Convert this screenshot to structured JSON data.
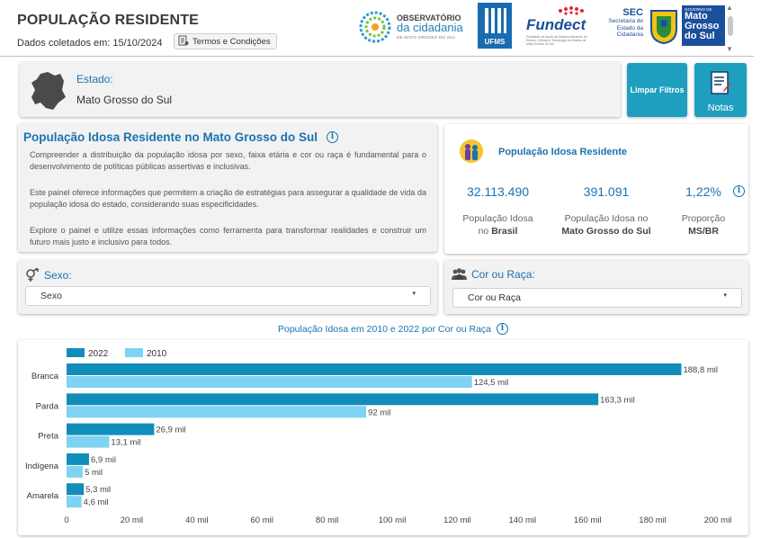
{
  "header": {
    "title": "POPULAÇÃO RESIDENTE",
    "collected": "Dados coletados em: 15/10/2024",
    "terms_button": "Termos e Condições",
    "logos": {
      "observatorio_line1": "OBSERVATÓRIO",
      "observatorio_line2": "da cidadania",
      "observatorio_line3": "DE MATO GROSSO DO SUL",
      "ufms": "UFMS",
      "fundect": "Fundect",
      "fundect_sub": "Fundação de Apoio ao Desenvolvimento do Ensino, Ciência e Tecnologia do Estado de Mato Grosso do Sul",
      "sec_big": "SEC",
      "sec_small": [
        "Secretaria de",
        "Estado da",
        "Cidadania"
      ],
      "gov_small": "GOVERNO DE",
      "gov_line1": "Mato",
      "gov_line2": "Grosso",
      "gov_line3": "do Sul"
    }
  },
  "state": {
    "label": "Estado:",
    "value": "Mato Grosso do Sul"
  },
  "buttons": {
    "limpar": "Limpar Filtros",
    "notas": "Notas"
  },
  "description": {
    "title": "População Idosa Residente no Mato Grosso do Sul",
    "p1": "Compreender a distribuição da população idosa por sexo, faixa etária e cor ou raça é fundamental para o desenvolvimento de políticas públicas assertivas e inclusivas.",
    "p2": "Este painel oferece informações que permitem a criação de estratégias para assegurar a qualidade de vida da população idosa do estado, considerando suas especificidades.",
    "p3": "Explore o painel e utilize essas informações como ferramenta para transformar realidades e construir um futuro mais justo e inclusivo para todos."
  },
  "stats": {
    "title": "População Idosa Residente",
    "items": [
      {
        "value": "32.113.490",
        "label1": "População Idosa",
        "label2_pre": "no ",
        "label2_bold": "Brasil"
      },
      {
        "value": "391.091",
        "label1": "População Idosa no",
        "label2_pre": "",
        "label2_bold": "Mato Grosso do Sul"
      },
      {
        "value": "1,22%",
        "label1": "Proporção",
        "label2_pre": "",
        "label2_bold": "MS/BR"
      }
    ]
  },
  "filters": {
    "sexo": {
      "label": "Sexo:",
      "selected": "Sexo"
    },
    "cor": {
      "label": "Cor ou Raça:",
      "selected": "Cor ou Raça"
    }
  },
  "colors": {
    "accent": "#1a73b0",
    "button": "#1f9fbf",
    "series_2022": "#118dba",
    "series_2010": "#7fd3f2"
  },
  "chart_data": {
    "type": "bar",
    "orientation": "horizontal",
    "title": "População Idosa em 2010 e 2022 por Cor ou Raça",
    "categories": [
      "Branca",
      "Parda",
      "Preta",
      "Indígena",
      "Amarela"
    ],
    "series": [
      {
        "name": "2022",
        "values": [
          188.8,
          163.3,
          26.9,
          6.9,
          5.3
        ],
        "labels": [
          "188,8 mil",
          "163,3 mil",
          "26,9 mil",
          "6,9 mil",
          "5,3 mil"
        ]
      },
      {
        "name": "2010",
        "values": [
          124.5,
          92,
          13.1,
          5,
          4.6
        ],
        "labels": [
          "124,5 mil",
          "92 mil",
          "13,1 mil",
          "5 mil",
          "4,6 mil"
        ]
      }
    ],
    "xlim": [
      0,
      200
    ],
    "xticks": [
      0,
      20,
      40,
      60,
      80,
      100,
      120,
      140,
      160,
      180,
      200
    ],
    "xtick_labels": [
      "0",
      "20 mil",
      "40 mil",
      "60 mil",
      "80 mil",
      "100 mil",
      "120 mil",
      "140 mil",
      "160 mil",
      "180 mil",
      "200 mil"
    ],
    "legend": "top-left",
    "grid": false
  }
}
